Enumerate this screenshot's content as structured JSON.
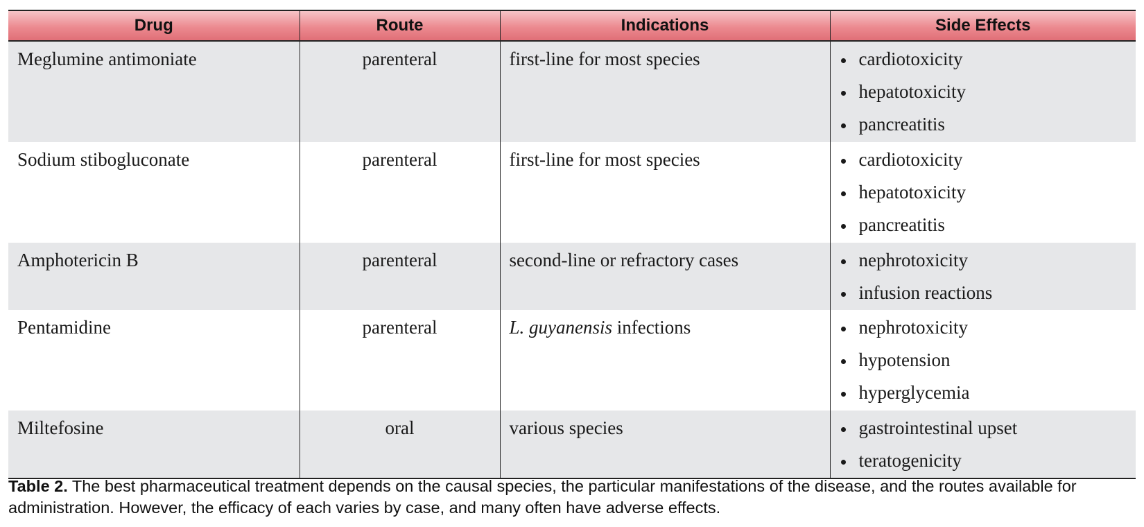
{
  "table": {
    "headers": {
      "drug": "Drug",
      "route": "Route",
      "indications": "Indications",
      "side_effects": "Side Effects"
    },
    "rows": [
      {
        "drug": "Meglumine antimoniate",
        "route": "parenteral",
        "indication_italic": "",
        "indication": "first-line for most species",
        "side_effects": [
          "cardiotoxicity",
          "hepatotoxicity",
          "pancreatitis"
        ]
      },
      {
        "drug": "Sodium stibogluconate",
        "route": "parenteral",
        "indication_italic": "",
        "indication": "first-line for most species",
        "side_effects": [
          "cardiotoxicity",
          "hepatotoxicity",
          "pancreatitis"
        ]
      },
      {
        "drug": "Amphotericin B",
        "route": "parenteral",
        "indication_italic": "",
        "indication": "second-line or refractory cases",
        "side_effects": [
          "nephrotoxicity",
          "infusion reactions"
        ]
      },
      {
        "drug": "Pentamidine",
        "route": "parenteral",
        "indication_italic": "L. guyanensis",
        "indication": " infections",
        "side_effects": [
          "nephrotoxicity",
          "hypotension",
          "hyperglycemia"
        ]
      },
      {
        "drug": "Miltefosine",
        "route": "oral",
        "indication_italic": "",
        "indication": "various species",
        "side_effects": [
          "gastrointestinal upset",
          "teratogenicity"
        ]
      }
    ]
  },
  "caption": {
    "label": "Table 2.",
    "text": " The best pharmaceutical treatment depends on the causal species, the particular manifestations of the disease, and the routes available for administration. However, the efficacy of each varies by case, and many often have adverse effects."
  },
  "colors": {
    "header_top": "#f6c4c7",
    "header_bottom": "#e06f77",
    "row_shade": "#e6e7e9",
    "rule": "#222222"
  }
}
